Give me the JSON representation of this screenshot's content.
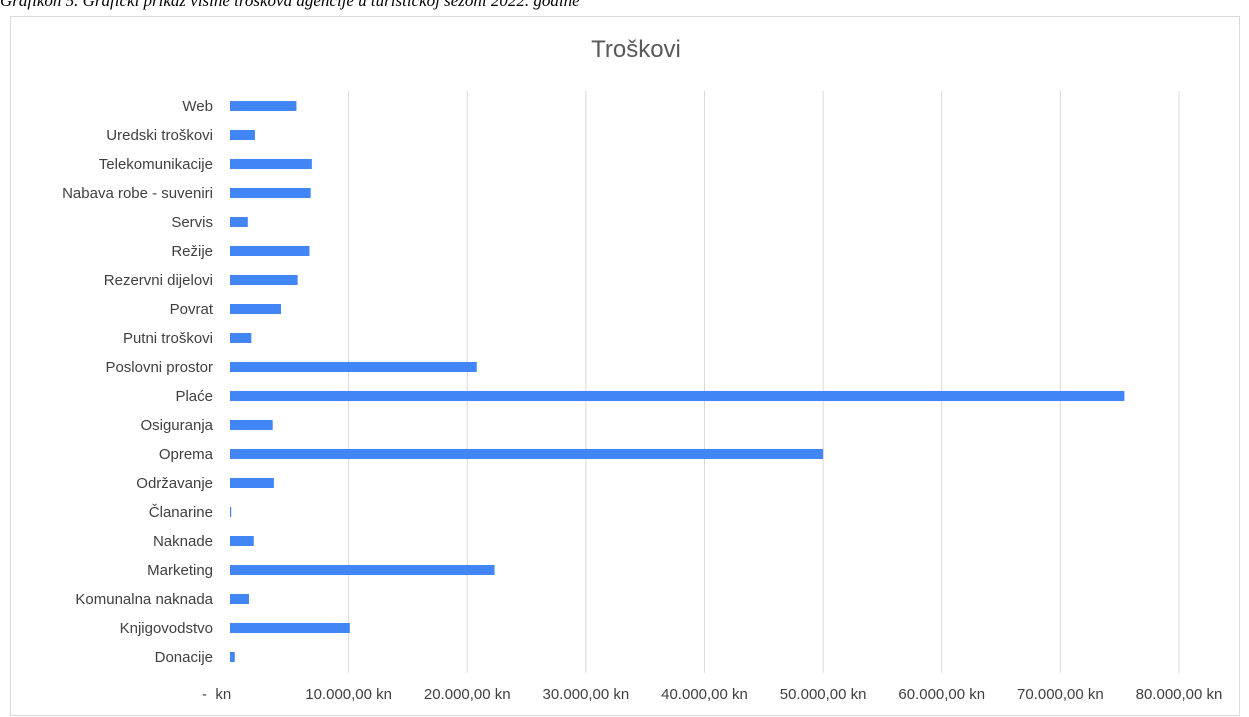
{
  "caption": "Grafikon 5. Grafički prikaz visine troškova agencije u turističkoj sezoni 2022. godine",
  "chart_data": {
    "type": "bar",
    "orientation": "horizontal",
    "title": "Troškovi",
    "categories": [
      "Donacije",
      "Knjigovodstvo",
      "Komunalna naknada",
      "Marketing",
      "Naknade",
      "Članarine",
      "Održavanje",
      "Oprema",
      "Osiguranja",
      "Plaće",
      "Poslovni prostor",
      "Putni troškovi",
      "Povrat",
      "Rezervni dijelovi",
      "Režije",
      "Servis",
      "Nabava robe - suveniri",
      "Telekomunikacije",
      "Uredski troškovi",
      "Web"
    ],
    "values": [
      400,
      10100,
      1600,
      22300,
      2000,
      100,
      3700,
      50000,
      3600,
      75400,
      20800,
      1800,
      4300,
      5700,
      6700,
      1500,
      6800,
      6900,
      2100,
      5600
    ],
    "xlim": [
      0,
      80000
    ],
    "xticks": [
      0,
      10000,
      20000,
      30000,
      40000,
      50000,
      60000,
      70000,
      80000
    ],
    "xtick_labels": [
      "-  kn",
      "10.000,00 kn",
      "20.000,00 kn",
      "30.000,00 kn",
      "40.000,00 kn",
      "50.000,00 kn",
      "60.000,00 kn",
      "70.000,00 kn",
      "80.000,00 kn"
    ],
    "grid": "vertical",
    "bar_color": "#4285f4",
    "grid_color": "#d9d9d9"
  }
}
